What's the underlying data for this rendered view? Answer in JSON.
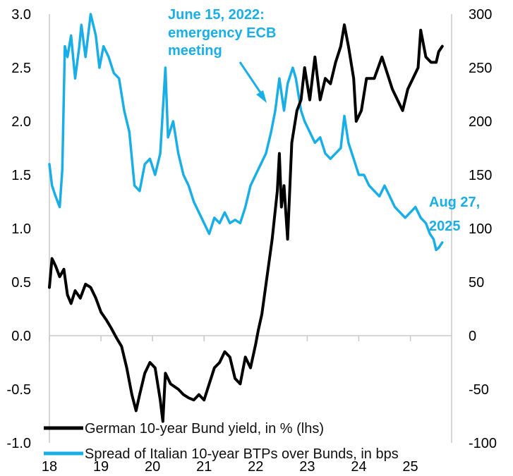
{
  "chart_data": {
    "type": "line",
    "title": "",
    "x_tick_labels": [
      "18",
      "19",
      "20",
      "21",
      "22",
      "23",
      "24",
      "25"
    ],
    "y_left": {
      "label": "",
      "ylim": [
        -1.0,
        3.0
      ],
      "ticks": [
        "-1.0",
        "-0.5",
        "0.0",
        "0.5",
        "1.0",
        "1.5",
        "2.0",
        "2.5",
        "3.0"
      ]
    },
    "y_right": {
      "label": "",
      "ylim": [
        -100,
        300
      ],
      "ticks": [
        "-100",
        "-50",
        "0",
        "50",
        "100",
        "150",
        "200",
        "250",
        "300"
      ]
    },
    "grid": false,
    "legend_position": "bottom",
    "series": [
      {
        "name": "German 10-year Bund yield, in % (lhs)",
        "axis": "left",
        "color": "#000000",
        "points": [
          [
            2018.0,
            0.45
          ],
          [
            2018.05,
            0.72
          ],
          [
            2018.12,
            0.65
          ],
          [
            2018.2,
            0.55
          ],
          [
            2018.28,
            0.62
          ],
          [
            2018.35,
            0.38
          ],
          [
            2018.42,
            0.3
          ],
          [
            2018.5,
            0.42
          ],
          [
            2018.6,
            0.35
          ],
          [
            2018.7,
            0.48
          ],
          [
            2018.8,
            0.45
          ],
          [
            2018.9,
            0.35
          ],
          [
            2019.0,
            0.22
          ],
          [
            2019.1,
            0.15
          ],
          [
            2019.2,
            0.07
          ],
          [
            2019.3,
            -0.02
          ],
          [
            2019.4,
            -0.1
          ],
          [
            2019.5,
            -0.3
          ],
          [
            2019.6,
            -0.55
          ],
          [
            2019.68,
            -0.7
          ],
          [
            2019.75,
            -0.55
          ],
          [
            2019.85,
            -0.35
          ],
          [
            2019.95,
            -0.25
          ],
          [
            2020.05,
            -0.3
          ],
          [
            2020.15,
            -0.6
          ],
          [
            2020.2,
            -0.8
          ],
          [
            2020.25,
            -0.35
          ],
          [
            2020.35,
            -0.45
          ],
          [
            2020.5,
            -0.5
          ],
          [
            2020.6,
            -0.55
          ],
          [
            2020.7,
            -0.58
          ],
          [
            2020.8,
            -0.6
          ],
          [
            2020.9,
            -0.55
          ],
          [
            2021.0,
            -0.6
          ],
          [
            2021.1,
            -0.45
          ],
          [
            2021.2,
            -0.3
          ],
          [
            2021.3,
            -0.25
          ],
          [
            2021.4,
            -0.15
          ],
          [
            2021.5,
            -0.2
          ],
          [
            2021.6,
            -0.4
          ],
          [
            2021.7,
            -0.45
          ],
          [
            2021.8,
            -0.2
          ],
          [
            2021.9,
            -0.3
          ],
          [
            2022.0,
            -0.08
          ],
          [
            2022.05,
            0.05
          ],
          [
            2022.12,
            0.2
          ],
          [
            2022.22,
            0.55
          ],
          [
            2022.32,
            0.9
          ],
          [
            2022.42,
            1.35
          ],
          [
            2022.46,
            1.7
          ],
          [
            2022.5,
            1.2
          ],
          [
            2022.55,
            1.4
          ],
          [
            2022.62,
            0.9
          ],
          [
            2022.7,
            1.8
          ],
          [
            2022.8,
            2.1
          ],
          [
            2022.88,
            2.2
          ],
          [
            2022.95,
            2.5
          ],
          [
            2023.05,
            2.2
          ],
          [
            2023.15,
            2.6
          ],
          [
            2023.25,
            2.2
          ],
          [
            2023.35,
            2.4
          ],
          [
            2023.45,
            2.35
          ],
          [
            2023.55,
            2.55
          ],
          [
            2023.65,
            2.7
          ],
          [
            2023.72,
            2.9
          ],
          [
            2023.8,
            2.7
          ],
          [
            2023.9,
            2.4
          ],
          [
            2023.95,
            2.0
          ],
          [
            2024.05,
            2.1
          ],
          [
            2024.15,
            2.4
          ],
          [
            2024.3,
            2.4
          ],
          [
            2024.45,
            2.6
          ],
          [
            2024.55,
            2.45
          ],
          [
            2024.65,
            2.3
          ],
          [
            2024.75,
            2.2
          ],
          [
            2024.85,
            2.1
          ],
          [
            2024.95,
            2.3
          ],
          [
            2025.05,
            2.4
          ],
          [
            2025.15,
            2.5
          ],
          [
            2025.2,
            2.85
          ],
          [
            2025.3,
            2.6
          ],
          [
            2025.4,
            2.55
          ],
          [
            2025.5,
            2.55
          ],
          [
            2025.55,
            2.65
          ],
          [
            2025.62,
            2.7
          ]
        ]
      },
      {
        "name": "Spread of Italian 10-year BTPs over Bunds, in bps",
        "axis": "right",
        "color": "#1aaee6",
        "points": [
          [
            2018.0,
            160
          ],
          [
            2018.05,
            140
          ],
          [
            2018.12,
            130
          ],
          [
            2018.2,
            120
          ],
          [
            2018.25,
            155
          ],
          [
            2018.3,
            270
          ],
          [
            2018.35,
            260
          ],
          [
            2018.42,
            280
          ],
          [
            2018.5,
            240
          ],
          [
            2018.58,
            270
          ],
          [
            2018.62,
            290
          ],
          [
            2018.7,
            260
          ],
          [
            2018.8,
            300
          ],
          [
            2018.9,
            280
          ],
          [
            2018.97,
            250
          ],
          [
            2019.05,
            270
          ],
          [
            2019.15,
            260
          ],
          [
            2019.25,
            245
          ],
          [
            2019.35,
            240
          ],
          [
            2019.45,
            210
          ],
          [
            2019.55,
            190
          ],
          [
            2019.65,
            140
          ],
          [
            2019.75,
            135
          ],
          [
            2019.85,
            160
          ],
          [
            2019.95,
            165
          ],
          [
            2020.05,
            150
          ],
          [
            2020.15,
            170
          ],
          [
            2020.25,
            250
          ],
          [
            2020.3,
            185
          ],
          [
            2020.4,
            200
          ],
          [
            2020.5,
            170
          ],
          [
            2020.6,
            150
          ],
          [
            2020.7,
            140
          ],
          [
            2020.8,
            125
          ],
          [
            2020.9,
            115
          ],
          [
            2021.0,
            105
          ],
          [
            2021.1,
            95
          ],
          [
            2021.2,
            110
          ],
          [
            2021.3,
            105
          ],
          [
            2021.4,
            115
          ],
          [
            2021.5,
            105
          ],
          [
            2021.6,
            108
          ],
          [
            2021.7,
            105
          ],
          [
            2021.8,
            120
          ],
          [
            2021.9,
            140
          ],
          [
            2022.0,
            150
          ],
          [
            2022.1,
            160
          ],
          [
            2022.2,
            170
          ],
          [
            2022.3,
            190
          ],
          [
            2022.38,
            210
          ],
          [
            2022.46,
            240
          ],
          [
            2022.55,
            210
          ],
          [
            2022.62,
            235
          ],
          [
            2022.72,
            250
          ],
          [
            2022.78,
            240
          ],
          [
            2022.88,
            210
          ],
          [
            2022.95,
            200
          ],
          [
            2023.05,
            190
          ],
          [
            2023.15,
            180
          ],
          [
            2023.25,
            185
          ],
          [
            2023.35,
            170
          ],
          [
            2023.45,
            165
          ],
          [
            2023.55,
            170
          ],
          [
            2023.65,
            175
          ],
          [
            2023.72,
            205
          ],
          [
            2023.8,
            180
          ],
          [
            2023.9,
            165
          ],
          [
            2024.0,
            150
          ],
          [
            2024.1,
            150
          ],
          [
            2024.2,
            140
          ],
          [
            2024.3,
            135
          ],
          [
            2024.4,
            130
          ],
          [
            2024.5,
            140
          ],
          [
            2024.6,
            130
          ],
          [
            2024.7,
            120
          ],
          [
            2024.8,
            115
          ],
          [
            2024.9,
            110
          ],
          [
            2025.0,
            115
          ],
          [
            2025.1,
            120
          ],
          [
            2025.2,
            110
          ],
          [
            2025.3,
            105
          ],
          [
            2025.38,
            95
          ],
          [
            2025.45,
            90
          ],
          [
            2025.5,
            80
          ],
          [
            2025.55,
            82
          ],
          [
            2025.62,
            87
          ]
        ]
      }
    ],
    "annotations": [
      {
        "lines": [
          "June 15, 2022:",
          "emergency ECB",
          "meeting"
        ],
        "color": "#1aaee6"
      },
      {
        "lines": [
          "Aug 27,",
          "2025"
        ],
        "color": "#1aaee6"
      }
    ]
  }
}
